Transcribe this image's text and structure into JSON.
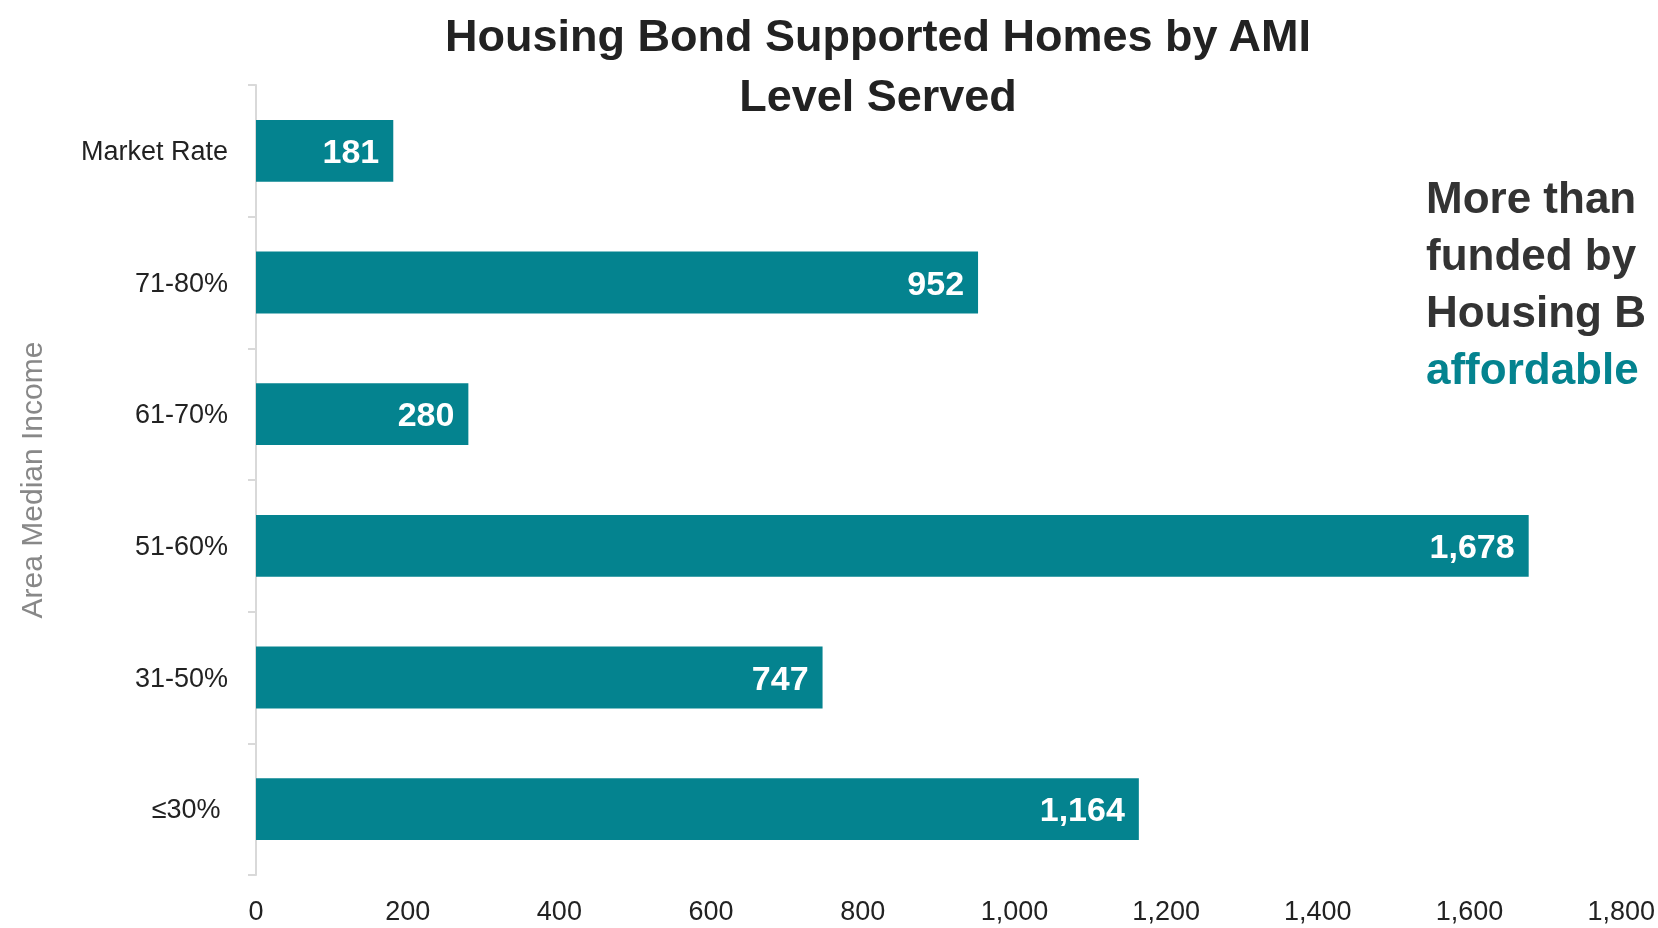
{
  "chart_data": {
    "type": "bar",
    "orientation": "horizontal",
    "title": "Housing Bond Supported Homes by AMI\nLevel Served",
    "ylabel": "Area Median Income",
    "categories": [
      "Market Rate",
      "71-80%",
      "61-70%",
      "51-60%",
      "31-50%",
      "≤30% "
    ],
    "values": [
      181,
      952,
      280,
      1678,
      747,
      1164
    ],
    "color": "#04838f",
    "xlim": [
      0,
      1800
    ],
    "xticks": [
      0,
      200,
      400,
      600,
      800,
      {
        "value": 1000,
        "label": "1,000"
      },
      {
        "value": 1200,
        "label": "1,200"
      },
      {
        "value": 1400,
        "label": "1,400"
      },
      {
        "value": 1600,
        "label": "1,600"
      },
      {
        "value": 1800,
        "label": "1,800"
      }
    ],
    "value_labels": [
      "181",
      "952",
      "280",
      "1,678",
      "747",
      "1,164"
    ],
    "grid": false,
    "annotations": [
      "More than",
      "funded by",
      "Housing B",
      "affordable"
    ]
  }
}
